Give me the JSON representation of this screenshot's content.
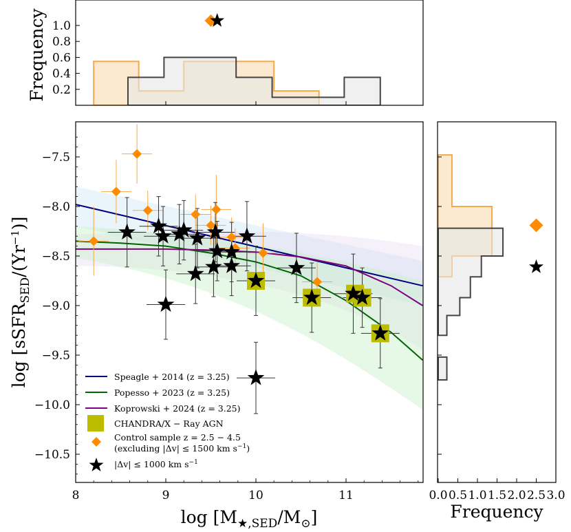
{
  "chart_data": {
    "type": "scatter",
    "panels": {
      "main": {
        "xlabel": "log [M★,SED/M⊙]",
        "ylabel": "log [sSFR_SED/(Yr⁻¹)]",
        "xlim": [
          8.0,
          11.85
        ],
        "ylim": [
          -10.75,
          -7.2
        ],
        "xticks": [
          "8",
          "9",
          "10",
          "11"
        ],
        "yticks": [
          "−7.5",
          "−8.0",
          "−8.5",
          "−9.0",
          "−9.5",
          "−10.0",
          "−10.5"
        ]
      },
      "top_hist": {
        "ylabel": "Frequency",
        "yticks": [
          "0.2",
          "0.4",
          "0.6",
          "0.8",
          "1.0"
        ],
        "ylim": [
          0,
          1.23
        ],
        "control_bins": [
          [
            8.2,
            8.7,
            0.55
          ],
          [
            8.7,
            9.2,
            0.18
          ],
          [
            9.2,
            10.2,
            0.55
          ],
          [
            10.2,
            10.7,
            0.18
          ]
        ],
        "velocity_bins": [
          [
            8.58,
            8.98,
            0.35
          ],
          [
            8.98,
            9.78,
            0.6
          ],
          [
            9.78,
            10.18,
            0.35
          ],
          [
            10.18,
            10.98,
            0.1
          ],
          [
            10.98,
            11.38,
            0.35
          ]
        ],
        "markers": {
          "control_median_x": 9.5,
          "velocity_median_x": 9.57,
          "y": 1.06
        }
      },
      "right_hist": {
        "xlabel": "Frequency",
        "xticks": [
          "0.0",
          "0.5",
          "1.0",
          "1.5",
          "2.0",
          "2.5",
          "3.0"
        ],
        "xlim": [
          0,
          3.0
        ],
        "control_bins": [
          [
            -8.0,
            -7.48,
            0.35
          ],
          [
            -8.22,
            -8.0,
            1.37
          ],
          [
            -8.5,
            -8.22,
            1.37
          ],
          [
            -8.71,
            -8.5,
            0.35
          ]
        ],
        "velocity_bins": [
          [
            -8.5,
            -8.22,
            1.65
          ],
          [
            -8.71,
            -8.5,
            1.1
          ],
          [
            -8.92,
            -8.71,
            0.82
          ],
          [
            -9.1,
            -8.92,
            0.55
          ],
          [
            -9.3,
            -9.1,
            0.22
          ],
          [
            -9.75,
            -9.52,
            0.22
          ]
        ],
        "markers": {
          "control_median_y": -8.19,
          "velocity_median_y": -8.61,
          "x": 2.5
        }
      }
    },
    "series": [
      {
        "name": "Speagle + 2014 (z = 3.25)",
        "kind": "line",
        "color": "#000080",
        "x": [
          8.0,
          11.85
        ],
        "y": [
          -7.98,
          -8.8
        ]
      },
      {
        "name": "Popesso + 2023 (z = 3.25)",
        "kind": "line",
        "color": "#006400",
        "x": [
          8.0,
          8.5,
          9.0,
          9.5,
          10.0,
          10.5,
          11.0,
          11.5,
          11.85
        ],
        "y": [
          -8.35,
          -8.37,
          -8.4,
          -8.47,
          -8.56,
          -8.7,
          -8.95,
          -9.27,
          -9.55
        ]
      },
      {
        "name": "Koprowski + 2024 (z = 3.25)",
        "kind": "line",
        "color": "#800080",
        "x": [
          8.0,
          8.5,
          9.0,
          9.5,
          10.0,
          10.5,
          11.0,
          11.5,
          11.85
        ],
        "y": [
          -8.43,
          -8.43,
          -8.43,
          -8.44,
          -8.46,
          -8.51,
          -8.6,
          -8.8,
          -9.0
        ]
      },
      {
        "name": "CHANDRA/X − Ray AGN",
        "kind": "square",
        "color": "#bcbc00",
        "points": [
          [
            10.0,
            -8.75
          ],
          [
            10.62,
            -8.92
          ],
          [
            11.1,
            -8.88
          ],
          [
            11.18,
            -8.92
          ],
          [
            11.38,
            -9.28
          ]
        ]
      },
      {
        "name": "Control sample z = 2.5 − 4.5",
        "name_line2": "(excluding |Δv| ≤ 1500 km s⁻¹)",
        "kind": "diamond",
        "color": "#ff8c00",
        "points": [
          [
            8.2,
            -8.35,
            0.35
          ],
          [
            8.45,
            -7.85,
            0.32
          ],
          [
            8.68,
            -7.47,
            0.3
          ],
          [
            8.8,
            -8.04,
            0.2
          ],
          [
            9.33,
            -8.08,
            0.2
          ],
          [
            9.5,
            -8.19,
            0.2
          ],
          [
            9.56,
            -8.03,
            0.35
          ],
          [
            9.73,
            -8.31,
            0.2
          ],
          [
            9.77,
            -8.42,
            0.2
          ],
          [
            10.08,
            -8.47,
            0.3
          ],
          [
            10.68,
            -8.76,
            0.2
          ]
        ]
      },
      {
        "name": "|Δv| ≤ 1000 km s⁻¹",
        "kind": "star",
        "color": "#000000",
        "points": [
          [
            8.57,
            -8.26,
            0.35
          ],
          [
            8.92,
            -8.2,
            0.3
          ],
          [
            8.97,
            -8.3,
            0.3
          ],
          [
            9.0,
            -8.99,
            0.35
          ],
          [
            9.15,
            -8.28,
            0.3
          ],
          [
            9.2,
            -8.24,
            0.3
          ],
          [
            9.35,
            -8.32,
            0.3
          ],
          [
            9.33,
            -8.68,
            0.3
          ],
          [
            9.55,
            -8.26,
            0.3
          ],
          [
            9.57,
            -8.45,
            0.3
          ],
          [
            9.53,
            -8.61,
            0.3
          ],
          [
            9.73,
            -8.46,
            0.3
          ],
          [
            9.73,
            -8.6,
            0.3
          ],
          [
            9.9,
            -8.3,
            0.35
          ],
          [
            10.0,
            -8.75,
            0.35
          ],
          [
            10.0,
            -9.73,
            0.36
          ],
          [
            10.45,
            -8.62,
            0.35
          ],
          [
            10.62,
            -8.92,
            0.35
          ],
          [
            11.08,
            -8.88,
            0.4
          ],
          [
            11.18,
            -8.92,
            0.3
          ],
          [
            11.38,
            -9.28,
            0.35
          ]
        ]
      }
    ],
    "colors": {
      "control_fill": "#fce6c8",
      "control_edge": "#f6a84a",
      "velocity_fill": "#e6e6e6",
      "velocity_edge": "#444444"
    }
  }
}
